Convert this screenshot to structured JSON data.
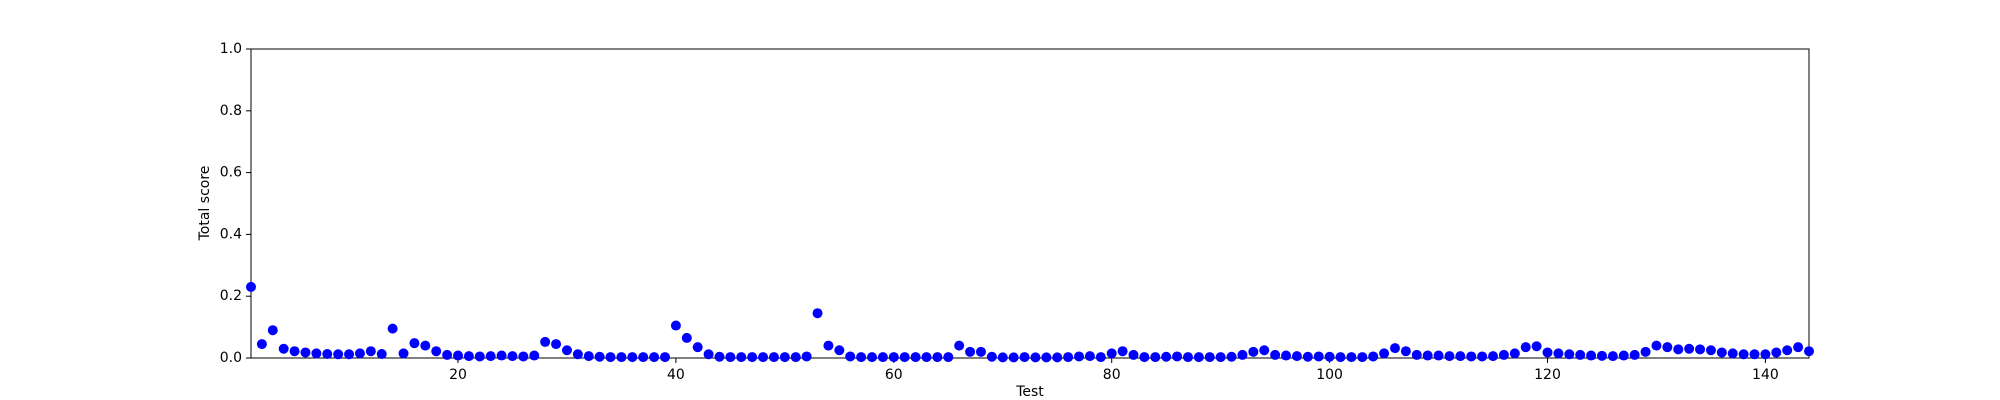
{
  "chart_data": {
    "type": "scatter",
    "xlabel": "Test",
    "ylabel": "Total score",
    "color": "#0000ff",
    "x": [
      1,
      2,
      3,
      4,
      5,
      6,
      7,
      8,
      9,
      10,
      11,
      12,
      13,
      14,
      15,
      16,
      17,
      18,
      19,
      20,
      21,
      22,
      23,
      24,
      25,
      26,
      27,
      28,
      29,
      30,
      31,
      32,
      33,
      34,
      35,
      36,
      37,
      38,
      39,
      40,
      41,
      42,
      43,
      44,
      45,
      46,
      47,
      48,
      49,
      50,
      51,
      52,
      53,
      54,
      55,
      56,
      57,
      58,
      59,
      60,
      61,
      62,
      63,
      64,
      65,
      66,
      67,
      68,
      69,
      70,
      71,
      72,
      73,
      74,
      75,
      76,
      77,
      78,
      79,
      80,
      81,
      82,
      83,
      84,
      85,
      86,
      87,
      88,
      89,
      90,
      91,
      92,
      93,
      94,
      95,
      96,
      97,
      98,
      99,
      100,
      101,
      102,
      103,
      104,
      105,
      106,
      107,
      108,
      109,
      110,
      111,
      112,
      113,
      114,
      115,
      116,
      117,
      118,
      119,
      120,
      121,
      122,
      123,
      124,
      125,
      126,
      127,
      128,
      129,
      130,
      131,
      132,
      133,
      134,
      135,
      136,
      137,
      138,
      139,
      140,
      141,
      142,
      143,
      144
    ],
    "values": [
      0.23,
      0.045,
      0.09,
      0.03,
      0.022,
      0.018,
      0.015,
      0.013,
      0.012,
      0.012,
      0.015,
      0.022,
      0.013,
      0.095,
      0.015,
      0.048,
      0.04,
      0.022,
      0.01,
      0.008,
      0.006,
      0.005,
      0.006,
      0.008,
      0.006,
      0.005,
      0.008,
      0.052,
      0.045,
      0.025,
      0.012,
      0.006,
      0.004,
      0.003,
      0.003,
      0.003,
      0.003,
      0.003,
      0.003,
      0.105,
      0.065,
      0.035,
      0.012,
      0.004,
      0.003,
      0.003,
      0.003,
      0.003,
      0.003,
      0.003,
      0.003,
      0.005,
      0.145,
      0.04,
      0.025,
      0.005,
      0.003,
      0.003,
      0.003,
      0.003,
      0.003,
      0.003,
      0.003,
      0.003,
      0.003,
      0.04,
      0.02,
      0.02,
      0.004,
      0.002,
      0.002,
      0.003,
      0.002,
      0.002,
      0.002,
      0.003,
      0.005,
      0.006,
      0.003,
      0.015,
      0.022,
      0.01,
      0.003,
      0.003,
      0.004,
      0.005,
      0.003,
      0.003,
      0.003,
      0.003,
      0.004,
      0.01,
      0.02,
      0.025,
      0.01,
      0.008,
      0.006,
      0.004,
      0.005,
      0.004,
      0.003,
      0.003,
      0.003,
      0.005,
      0.015,
      0.032,
      0.022,
      0.01,
      0.008,
      0.008,
      0.006,
      0.006,
      0.005,
      0.005,
      0.006,
      0.01,
      0.015,
      0.035,
      0.038,
      0.018,
      0.015,
      0.012,
      0.01,
      0.008,
      0.007,
      0.006,
      0.008,
      0.01,
      0.02,
      0.04,
      0.035,
      0.028,
      0.03,
      0.028,
      0.025,
      0.018,
      0.015,
      0.012,
      0.012,
      0.012,
      0.018,
      0.025,
      0.035,
      0.022
    ],
    "xlim": [
      1,
      144
    ],
    "xticks": [
      20,
      40,
      60,
      80,
      100,
      120,
      140
    ],
    "ylim": [
      0,
      1
    ],
    "yticks": [
      {
        "value": 0,
        "label": "0.0"
      },
      0.2,
      0.4,
      0.6,
      0.8,
      {
        "value": 1,
        "label": "1.0"
      }
    ],
    "grid": false
  }
}
